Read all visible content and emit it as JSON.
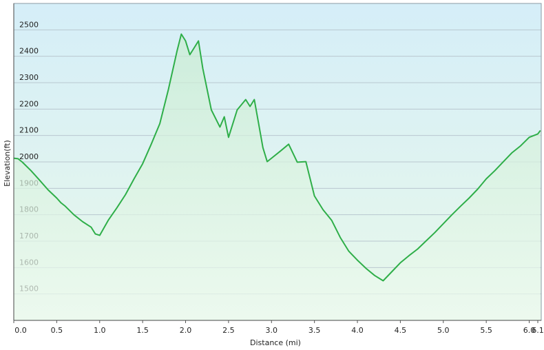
{
  "chart_data": {
    "type": "line",
    "x_label": "Distance  (mi)",
    "y_label": "Elevation(ft)",
    "x": [
      0,
      0.05,
      0.1,
      0.2,
      0.3,
      0.4,
      0.5,
      0.55,
      0.6,
      0.7,
      0.8,
      0.9,
      0.95,
      1.0,
      1.1,
      1.2,
      1.3,
      1.4,
      1.5,
      1.6,
      1.7,
      1.8,
      1.9,
      1.95,
      2.0,
      2.05,
      2.1,
      2.15,
      2.2,
      2.3,
      2.4,
      2.45,
      2.5,
      2.6,
      2.7,
      2.75,
      2.8,
      2.85,
      2.9,
      2.95,
      3.0,
      3.1,
      3.2,
      3.3,
      3.4,
      3.5,
      3.6,
      3.7,
      3.8,
      3.9,
      4.0,
      4.1,
      4.2,
      4.3,
      4.4,
      4.5,
      4.6,
      4.7,
      4.8,
      4.9,
      5.0,
      5.1,
      5.2,
      5.3,
      5.4,
      5.5,
      5.6,
      5.7,
      5.8,
      5.9,
      6.0,
      6.1,
      6.13
    ],
    "series": [
      {
        "name": "Elevation",
        "color": "#2eae48",
        "values": [
          2014,
          2012,
          1999,
          1967,
          1931,
          1894,
          1863,
          1845,
          1832,
          1800,
          1774,
          1753,
          1727,
          1722,
          1779,
          1826,
          1876,
          1936,
          1993,
          2067,
          2145,
          2275,
          2419,
          2484,
          2458,
          2406,
          2432,
          2458,
          2354,
          2197,
          2132,
          2171,
          2093,
          2197,
          2236,
          2210,
          2236,
          2145,
          2054,
          2001,
          2014,
          2040,
          2067,
          1999,
          2001,
          1871,
          1819,
          1779,
          1714,
          1662,
          1628,
          1597,
          1570,
          1550,
          1584,
          1618,
          1645,
          1670,
          1701,
          1732,
          1766,
          1800,
          1832,
          1863,
          1897,
          1936,
          1967,
          2001,
          2035,
          2061,
          2093,
          2106,
          2119
        ]
      }
    ],
    "xlim": [
      0,
      6.14
    ],
    "xticks": [
      {
        "value": 0,
        "label": "0.0"
      },
      0.5,
      {
        "value": 1,
        "label": "1.0"
      },
      1.5,
      {
        "value": 2,
        "label": "2.0"
      },
      2.5,
      {
        "value": 3,
        "label": "3.0"
      },
      3.5,
      {
        "value": 4,
        "label": "4.0"
      },
      4.5,
      {
        "value": 5,
        "label": "5.0"
      },
      5.5,
      {
        "value": 6,
        "label": "6.0"
      },
      6.1
    ],
    "ylim": [
      1400,
      2600
    ],
    "yticks": [
      1500,
      1600,
      1700,
      1800,
      1900,
      2000,
      2100,
      2200,
      2300,
      2400,
      2500
    ],
    "grid": true
  }
}
